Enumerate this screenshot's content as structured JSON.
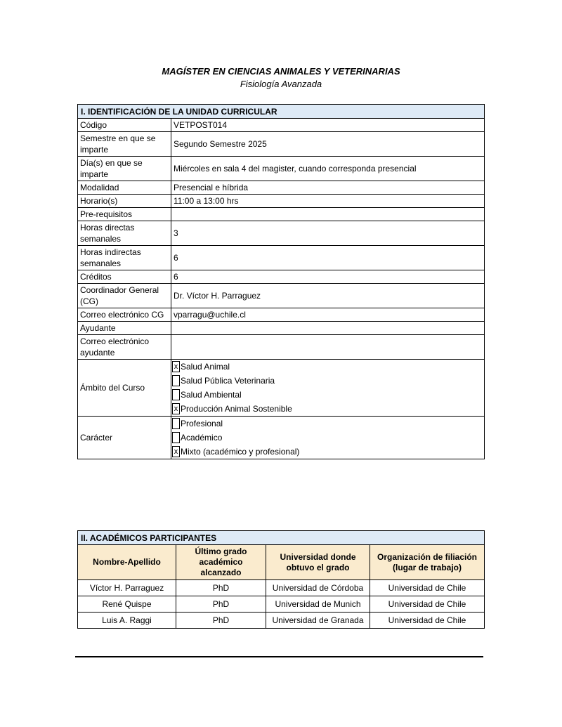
{
  "page": {
    "title": "MAGÍSTER EN CIENCIAS ANIMALES Y VETERINARIAS",
    "subtitle": "Fisiología Avanzada"
  },
  "colors": {
    "page_bg": "#FFFFFF",
    "text": "#000000",
    "border": "#000000",
    "section_header_bg": "#DEEAF6",
    "table2_header_bg": "#FAEBCE"
  },
  "section1": {
    "header": "I. IDENTIFICACIÓN DE LA UNIDAD CURRICULAR",
    "rows": [
      {
        "label": "Código",
        "value": "VETPOST014"
      },
      {
        "label": "Semestre en que se imparte",
        "value": "Segundo Semestre 2025"
      },
      {
        "label": "Día(s) en que se imparte",
        "value": "Miércoles en sala 4 del magister, cuando corresponda presencial"
      },
      {
        "label": "Modalidad",
        "value": "Presencial e híbrida"
      },
      {
        "label": "Horario(s)",
        "value": "11:00 a 13:00 hrs"
      },
      {
        "label": "Pre-requisitos",
        "value": ""
      },
      {
        "label": "Horas directas semanales",
        "value": "3"
      },
      {
        "label": "Horas indirectas semanales",
        "value": "6"
      },
      {
        "label": "Créditos",
        "value": "6"
      },
      {
        "label": "Coordinador General (CG)",
        "value": "Dr. Víctor H. Parraguez"
      },
      {
        "label": "Correo electrónico CG",
        "value": "vparragu@uchile.cl"
      },
      {
        "label": "Ayudante",
        "value": ""
      },
      {
        "label": "Correo electrónico ayudante",
        "value": ""
      }
    ],
    "ambito": {
      "label": "Ámbito del Curso",
      "options": [
        {
          "label": "Salud Animal",
          "checked": true,
          "mark": "x"
        },
        {
          "label": "Salud Pública Veterinaria",
          "checked": false,
          "mark": ""
        },
        {
          "label": "Salud Ambiental",
          "checked": false,
          "mark": ""
        },
        {
          "label": "Producción Animal Sostenible",
          "checked": true,
          "mark": "x"
        }
      ]
    },
    "caracter": {
      "label": "Carácter",
      "options": [
        {
          "label": "Profesional",
          "checked": false,
          "mark": ""
        },
        {
          "label": "Académico",
          "checked": false,
          "mark": ""
        },
        {
          "label": "Mixto (académico y profesional)",
          "checked": true,
          "mark": "x"
        }
      ]
    }
  },
  "section2": {
    "header": "II. ACADÉMICOS PARTICIPANTES",
    "columns": [
      "Nombre-Apellido",
      "Último grado académico alcanzado",
      "Universidad donde obtuvo el grado",
      "Organización de filiación (lugar de trabajo)"
    ],
    "rows": [
      [
        "Víctor H. Parraguez",
        "PhD",
        "Universidad de Córdoba",
        "Universidad de Chile"
      ],
      [
        "René Quispe",
        "PhD",
        "Universidad de Munich",
        "Universidad de Chile"
      ],
      [
        "Luis A. Raggi",
        "PhD",
        "Universidad de Granada",
        "Universidad de Chile"
      ]
    ]
  }
}
